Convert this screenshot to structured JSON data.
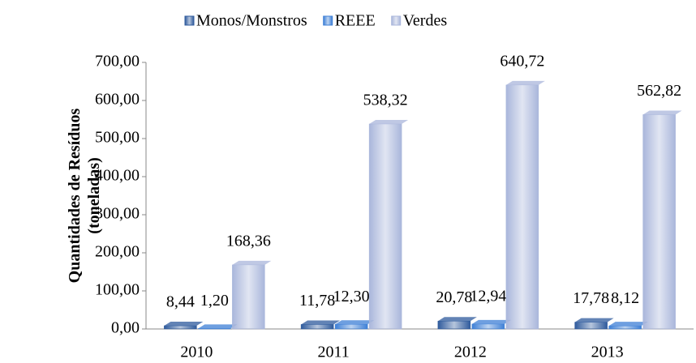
{
  "chart_data": {
    "type": "bar",
    "ylabel": [
      "Quantidades de Resíduos",
      "(toneladas)"
    ],
    "categories": [
      "2010",
      "2011",
      "2012",
      "2013"
    ],
    "series": [
      {
        "name": "Monos/Monstros",
        "color": "#2e5a9c",
        "values": [
          8.44,
          11.78,
          20.78,
          17.78
        ],
        "value_labels": [
          "8,44",
          "11,78",
          "20,78",
          "17,78"
        ]
      },
      {
        "name": "REEE",
        "color": "#3d7fd6",
        "values": [
          1.2,
          12.3,
          12.94,
          8.12
        ],
        "value_labels": [
          "1,20",
          "12,30",
          "12,94",
          "8,12"
        ]
      },
      {
        "name": "Verdes",
        "color": "#a9b6db",
        "values": [
          168.36,
          538.32,
          640.72,
          562.82
        ],
        "value_labels": [
          "168,36",
          "538,32",
          "640,72",
          "562,82"
        ]
      }
    ],
    "ylim": [
      0,
      700
    ],
    "yticks": [
      {
        "value": 0,
        "label": "0,00"
      },
      {
        "value": 100,
        "label": "100,00"
      },
      {
        "value": 200,
        "label": "200,00"
      },
      {
        "value": 300,
        "label": "300,00"
      },
      {
        "value": 400,
        "label": "400,00"
      },
      {
        "value": 500,
        "label": "500,00"
      },
      {
        "value": 600,
        "label": "600,00"
      },
      {
        "value": 700,
        "label": "700,00"
      }
    ],
    "legend": "top"
  }
}
